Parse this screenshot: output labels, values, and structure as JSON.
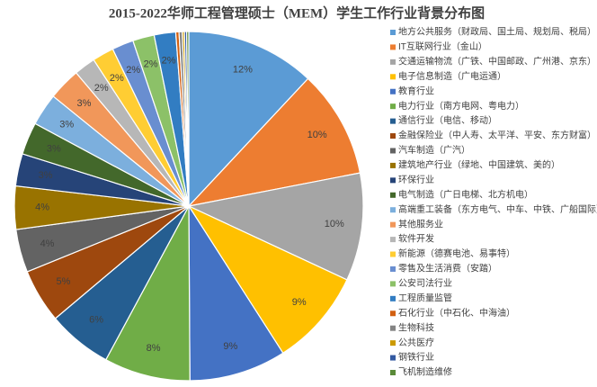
{
  "chart_data": {
    "type": "pie",
    "title": "2015-2022华师工程管理硕士（MEM）学生工作行业背景分布图",
    "categories": [
      "地方公共服务（财政局、国土局、规划局、税局）",
      "IT互联网行业（金山）",
      "交通运输物流（广铁、中国邮政、广州港、京东）",
      "电子信息制造（广电运通）",
      "教育行业",
      "电力行业（南方电网、粤电力）",
      "通信行业（电信、移动）",
      "金融保险业（中人寿、太平洋、平安、东方财富）",
      "汽车制造（广汽）",
      "建筑地产行业（绿地、中国建筑、美的）",
      "环保行业",
      "电气制造（广日电梯、北方机电）",
      "高端重工装备（东方电气、中车、中铁、广船国际）",
      "其他服务业",
      "软件开发",
      "新能源（德赛电池、易事特）",
      "零售及生活消费（安踏）",
      "公安司法行业",
      "工程质量监管",
      "石化行业（中石化、中海油）",
      "生物科技",
      "公共医疗",
      "钢铁行业",
      "飞机制造维修"
    ],
    "values": [
      12,
      10,
      10,
      9,
      9,
      8,
      6,
      5,
      4,
      4,
      3,
      3,
      3,
      3,
      2,
      2,
      2,
      2,
      2,
      0.3,
      0.3,
      0.2,
      0.2,
      0.2
    ],
    "value_labels": [
      "12%",
      "10%",
      "10%",
      "9%",
      "9%",
      "8%",
      "6%",
      "5%",
      "4%",
      "4%",
      "3%",
      "3%",
      "3%",
      "3%",
      "2%",
      "2%",
      "2%",
      "2%",
      "2%",
      null,
      null,
      null,
      null,
      null
    ],
    "colors": [
      "#5b9bd5",
      "#ed7d31",
      "#a5a5a5",
      "#ffc000",
      "#4472c4",
      "#70ad47",
      "#255e91",
      "#9e480e",
      "#636363",
      "#997300",
      "#264478",
      "#43682b",
      "#7cafdd",
      "#f1975a",
      "#b7b7b7",
      "#ffcd33",
      "#698ed0",
      "#8cc168",
      "#327dc2",
      "#d26012",
      "#848484",
      "#cc9a00",
      "#335aa1",
      "#5a8a39"
    ],
    "legend": "right"
  }
}
